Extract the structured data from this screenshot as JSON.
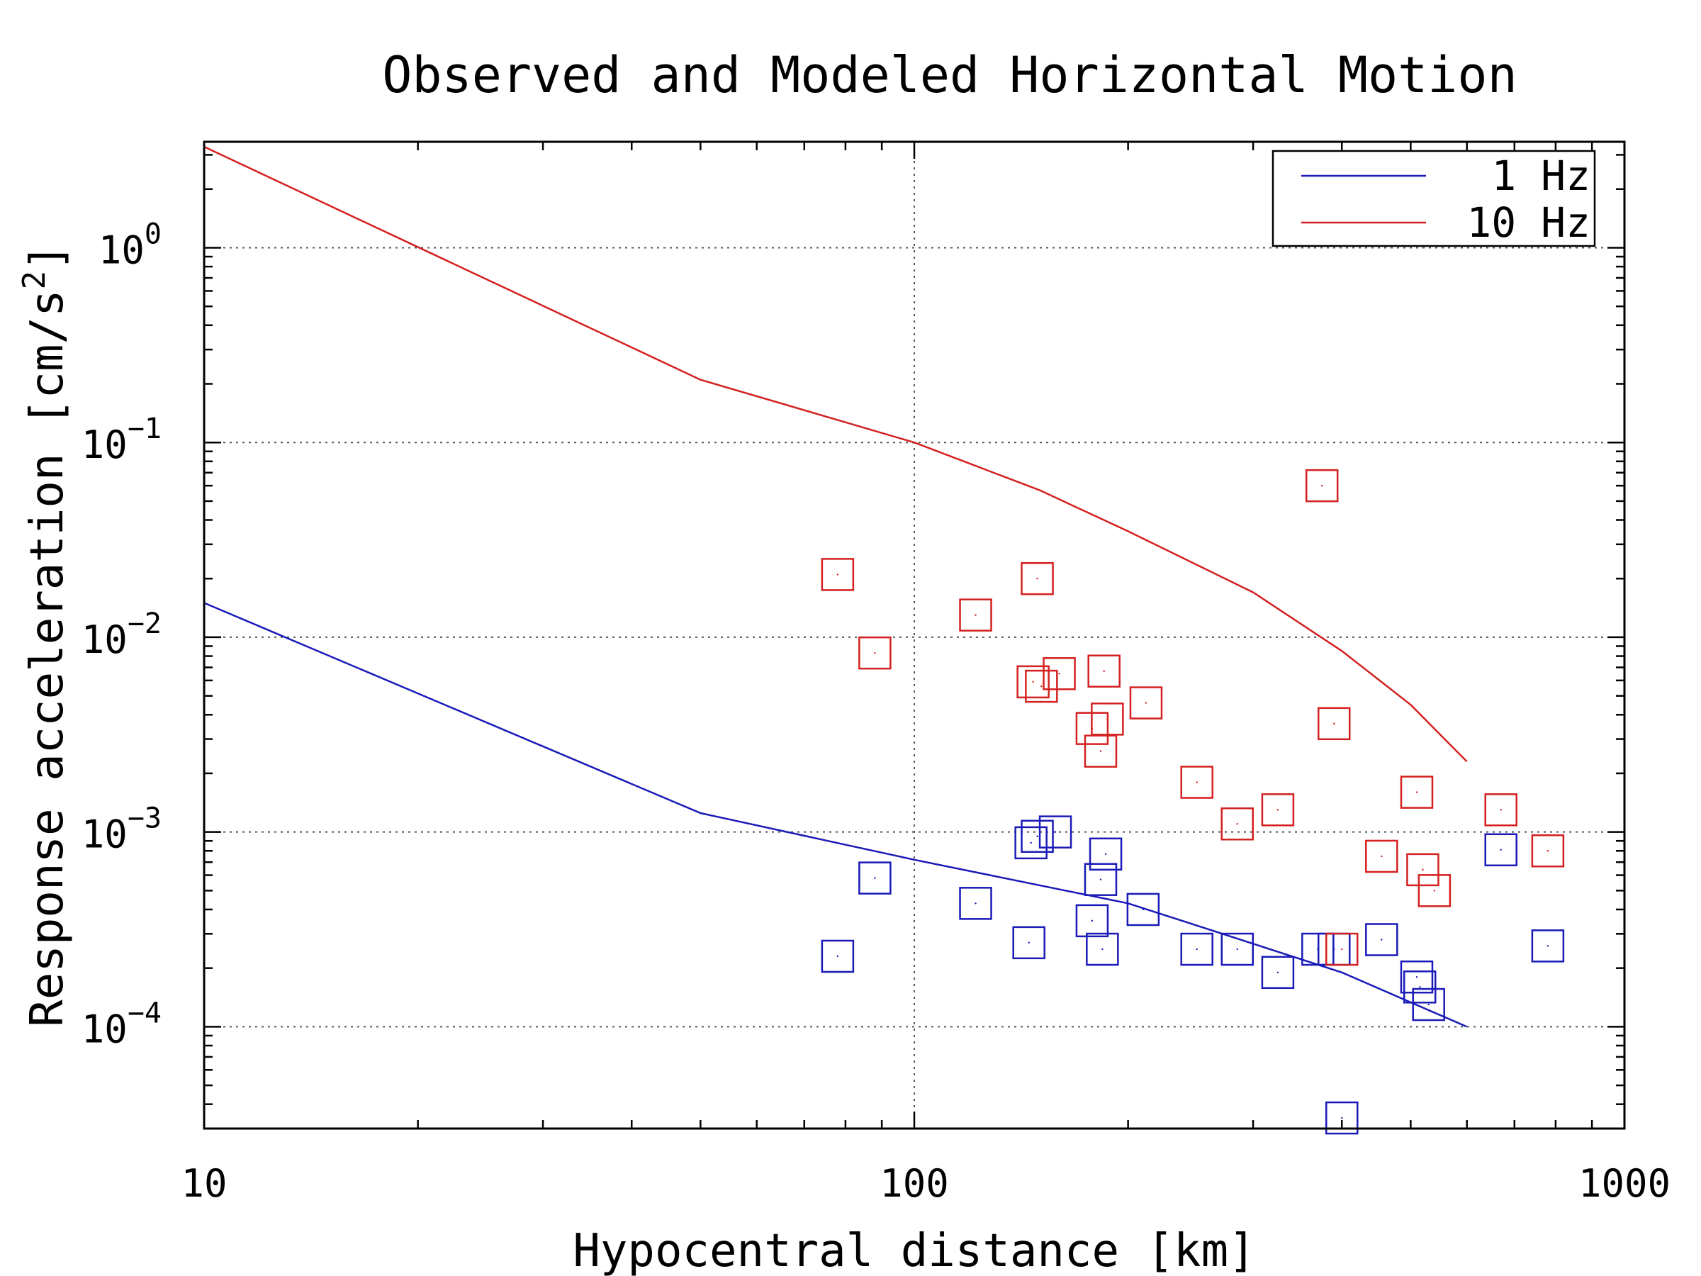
{
  "chart_data": {
    "type": "scatter",
    "title": "Observed and Modeled Horizontal Motion",
    "xlabel": "Hypocentral distance [km]",
    "ylabel": "Response acceleration [cm/s",
    "ylabel_sup": "2",
    "ylabel_end": "]",
    "xscale": "log",
    "yscale": "log",
    "xlim": [
      10,
      1000
    ],
    "ylim": [
      3e-05,
      3.5
    ],
    "grid": true,
    "legend_position": "top-right",
    "x_ticks": [
      {
        "value": 10,
        "label": "10"
      },
      {
        "value": 100,
        "label": "100"
      },
      {
        "value": 1000,
        "label": "1000"
      }
    ],
    "y_ticks": [
      {
        "value": 1,
        "base": "10",
        "exp": "0"
      },
      {
        "value": 0.1,
        "base": "10",
        "exp": "−1"
      },
      {
        "value": 0.01,
        "base": "10",
        "exp": "−2"
      },
      {
        "value": 0.001,
        "base": "10",
        "exp": "−3"
      },
      {
        "value": 0.0001,
        "base": "10",
        "exp": "−4"
      }
    ],
    "series": [
      {
        "name": "1 Hz",
        "color": "#1a1ab8",
        "line": [
          [
            10,
            0.015
          ],
          [
            50,
            0.00125
          ],
          [
            100,
            0.00072
          ],
          [
            200,
            0.00043
          ],
          [
            400,
            0.00019
          ],
          [
            600,
            0.0001
          ]
        ],
        "observed": [
          [
            78,
            0.00023
          ],
          [
            88,
            0.00058
          ],
          [
            122,
            0.00043
          ],
          [
            145,
            0.00027
          ],
          [
            146,
            0.00088
          ],
          [
            149,
            0.00095
          ],
          [
            158,
            0.001
          ],
          [
            178,
            0.00035
          ],
          [
            183,
            0.00057
          ],
          [
            186,
            0.00077
          ],
          [
            184,
            0.00025
          ],
          [
            210,
            0.0004
          ],
          [
            250,
            0.00025
          ],
          [
            285,
            0.00025
          ],
          [
            325,
            0.00019
          ],
          [
            370,
            0.00025
          ],
          [
            390,
            0.00025
          ],
          [
            400,
            3.4e-05
          ],
          [
            455,
            0.00028
          ],
          [
            510,
            0.00018
          ],
          [
            515,
            0.00016
          ],
          [
            530,
            0.00013
          ],
          [
            670,
            0.00081
          ],
          [
            780,
            0.00026
          ]
        ]
      },
      {
        "name": "10 Hz",
        "color": "#d42020",
        "line": [
          [
            10,
            3.3
          ],
          [
            50,
            0.21
          ],
          [
            100,
            0.1
          ],
          [
            150,
            0.057
          ],
          [
            200,
            0.035
          ],
          [
            300,
            0.017
          ],
          [
            400,
            0.0085
          ],
          [
            500,
            0.0045
          ],
          [
            600,
            0.0023
          ]
        ],
        "observed": [
          [
            78,
            0.021
          ],
          [
            88,
            0.0083
          ],
          [
            122,
            0.013
          ],
          [
            147,
            0.0059
          ],
          [
            149,
            0.02
          ],
          [
            151,
            0.0056
          ],
          [
            160,
            0.0065
          ],
          [
            178,
            0.0034
          ],
          [
            185,
            0.0067
          ],
          [
            183,
            0.0026
          ],
          [
            187,
            0.0038
          ],
          [
            212,
            0.0046
          ],
          [
            250,
            0.0018
          ],
          [
            285,
            0.0011
          ],
          [
            325,
            0.0013
          ],
          [
            375,
            0.06
          ],
          [
            390,
            0.0036
          ],
          [
            400,
            0.00025
          ],
          [
            455,
            0.00075
          ],
          [
            510,
            0.0016
          ],
          [
            520,
            0.00064
          ],
          [
            540,
            0.0005
          ],
          [
            670,
            0.0013
          ],
          [
            780,
            0.0008
          ]
        ]
      }
    ]
  }
}
